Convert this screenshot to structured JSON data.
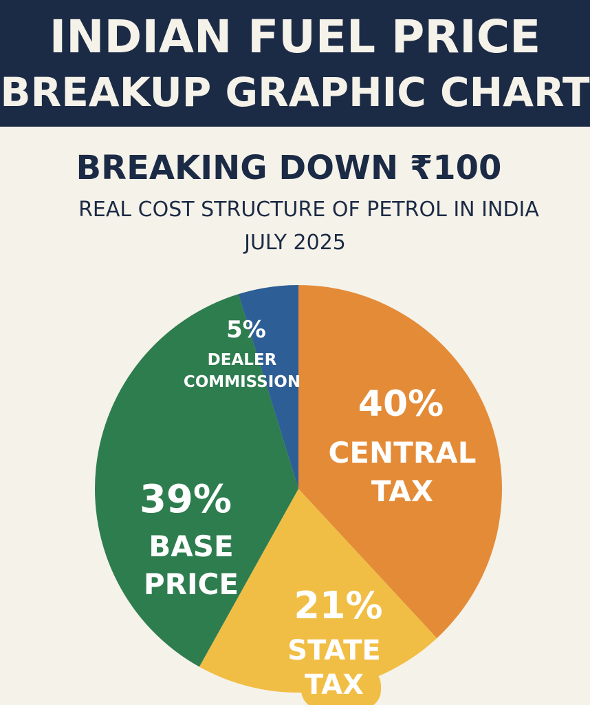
{
  "header": {
    "title_line_1": "INDIAN FUEL PRICE",
    "title_line_2": "BREAKUP GRAPHIC CHART"
  },
  "subtitle": "BREAKING DOWN ₹100",
  "description": "REAL COST STRUCTURE OF PETROL IN INDIA",
  "date": "JULY 2025",
  "colors": {
    "header_bg": "#1c2b45",
    "page_bg": "#f5f2ea",
    "central_tax": "#e48b38",
    "state_tax": "#f1be45",
    "base_price": "#2e7d4f",
    "dealer_commission": "#2d5e95"
  },
  "chart_data": {
    "type": "pie",
    "title": "",
    "unit": "%",
    "slices": [
      {
        "pct_label": "40%",
        "value": 40,
        "label_lines": [
          "CENTRAL",
          "TAX"
        ],
        "color": "#e48b38"
      },
      {
        "pct_label": "21%",
        "value": 21,
        "label_lines": [
          "STATE",
          "TAX"
        ],
        "color": "#f1be45"
      },
      {
        "pct_label": "39%",
        "value": 39,
        "label_lines": [
          "BASE",
          "PRICE"
        ],
        "color": "#2e7d4f"
      },
      {
        "pct_label": "5%",
        "value": 5,
        "label_lines": [
          "DEALER",
          "COMMISSION"
        ],
        "color": "#2d5e95"
      }
    ]
  }
}
